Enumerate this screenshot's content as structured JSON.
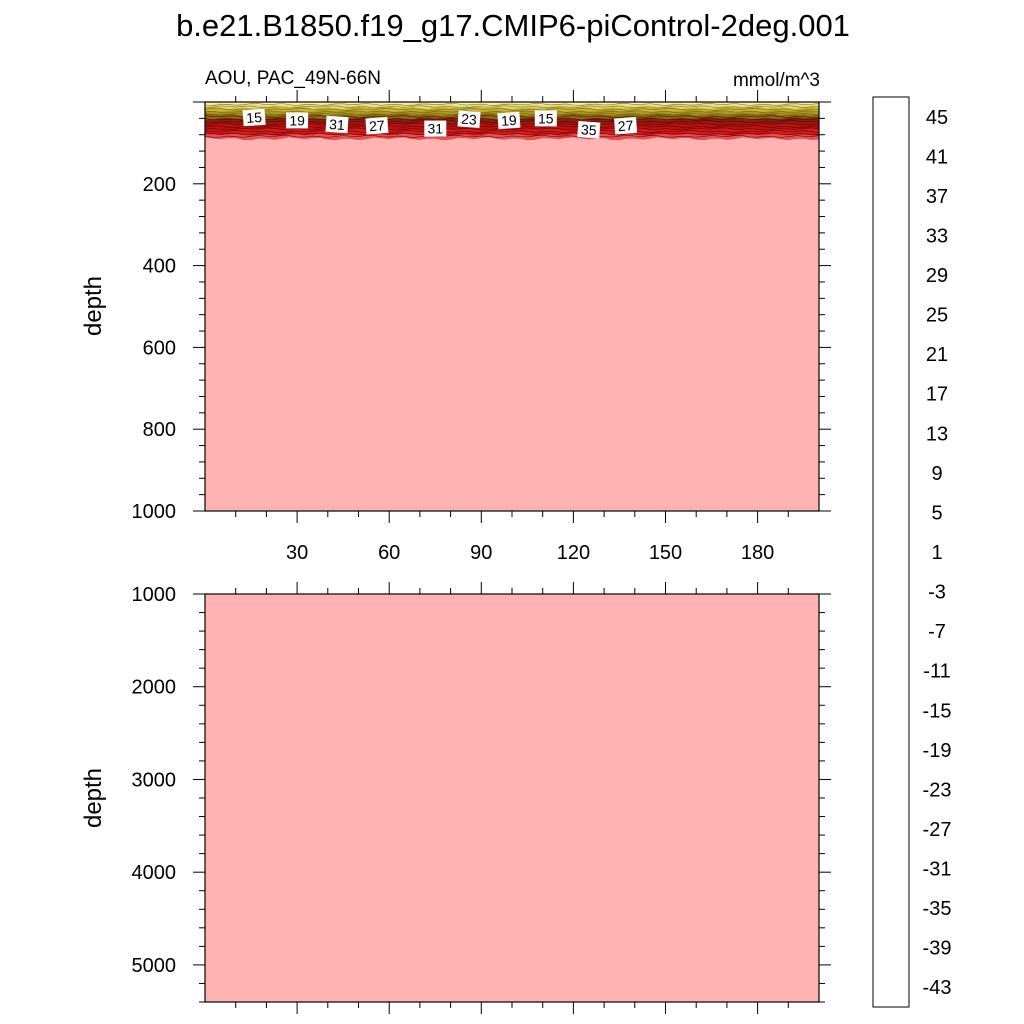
{
  "title": "b.e21.B1850.f19_g17.CMIP6-piControl-2deg.001",
  "chart_data": [
    {
      "type": "heatmap",
      "panel": "upper",
      "left_label": "AOU, PAC_49N-66N",
      "units_label": "mmol/m^3",
      "xlabel": "",
      "ylabel": "depth",
      "xlim": [
        0,
        200
      ],
      "ylim": [
        0,
        1000
      ],
      "y_reversed": true,
      "x_ticks": [
        30,
        60,
        90,
        120,
        150,
        180
      ],
      "y_ticks": [
        200,
        400,
        600,
        800,
        1000
      ],
      "fill_value": 45,
      "surface_layer_bottom_depth": 90,
      "contour_labels": [
        {
          "x": 16,
          "depth": 38,
          "text": "15"
        },
        {
          "x": 30,
          "depth": 45,
          "text": "19"
        },
        {
          "x": 43,
          "depth": 55,
          "text": "31"
        },
        {
          "x": 56,
          "depth": 58,
          "text": "27"
        },
        {
          "x": 75,
          "depth": 65,
          "text": "31"
        },
        {
          "x": 86,
          "depth": 42,
          "text": "23"
        },
        {
          "x": 99,
          "depth": 45,
          "text": "19"
        },
        {
          "x": 111,
          "depth": 40,
          "text": "15"
        },
        {
          "x": 125,
          "depth": 68,
          "text": "35"
        },
        {
          "x": 137,
          "depth": 58,
          "text": "27"
        }
      ]
    },
    {
      "type": "heatmap",
      "panel": "lower",
      "xlabel": "",
      "ylabel": "depth",
      "xlim": [
        0,
        200
      ],
      "ylim": [
        1000,
        5400
      ],
      "y_reversed": true,
      "y_ticks": [
        1000,
        2000,
        3000,
        4000,
        5000
      ],
      "fill_value": 45
    }
  ],
  "colorbar": {
    "labels": [
      "45",
      "41",
      "37",
      "33",
      "29",
      "25",
      "21",
      "17",
      "13",
      "9",
      "5",
      "1",
      "-3",
      "-7",
      "-11",
      "-15",
      "-19",
      "-23",
      "-27",
      "-31",
      "-35",
      "-39",
      "-43"
    ],
    "colors": [
      "#ffb3b3",
      "#f07f7f",
      "#e05555",
      "#d42a2a",
      "#cc0000",
      "#dd0000",
      "#ee0000",
      "#ff1010",
      "#ff2a00",
      "#ff4000",
      "#ff5500",
      "#ff6b00",
      "#ff8000",
      "#ff9100",
      "#ffa200",
      "#ffb300",
      "#ffc400",
      "#ffd21a",
      "#ffdc3a",
      "#ffe659",
      "#fff07a",
      "#fff799",
      "#fffcc4",
      "#ccecf6",
      "#b8e2f4",
      "#a4d8f2",
      "#8ecdf1",
      "#77c4f0",
      "#5fbaf0",
      "#45b0f2",
      "#29a5f4",
      "#0f9af6",
      "#0a8ef8",
      "#1a82f6",
      "#2a76f2",
      "#3a6aee",
      "#4a5eea",
      "#3f52ec",
      "#3046ee",
      "#233af0",
      "#162ef4",
      "#0a22f8",
      "#1a16fa",
      "#3a12f6",
      "#5a14f2",
      "#7a20f0"
    ]
  }
}
